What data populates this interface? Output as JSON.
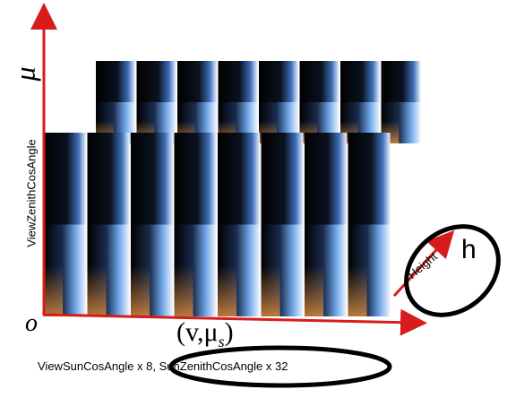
{
  "labels": {
    "mu": "μ",
    "y_axis": "ViewZenithCosAngle",
    "origin": "o",
    "x_symbol": "(v,μ",
    "x_symbol_sub": "s",
    "x_symbol_close": ")",
    "x_axis": "ViewSunCosAngle x 8, SunZenithCosAngle x 32",
    "height": "Height",
    "h": "h"
  },
  "colors": {
    "axis": "#d81b1b",
    "ellipse": "#000000",
    "slice_dark": "#000000",
    "slice_blue": "#6fa6e8",
    "slice_white": "#e9f3ff",
    "slice_orange": "#c07a3a"
  },
  "slices": {
    "front_count": 8,
    "back_count": 8
  }
}
